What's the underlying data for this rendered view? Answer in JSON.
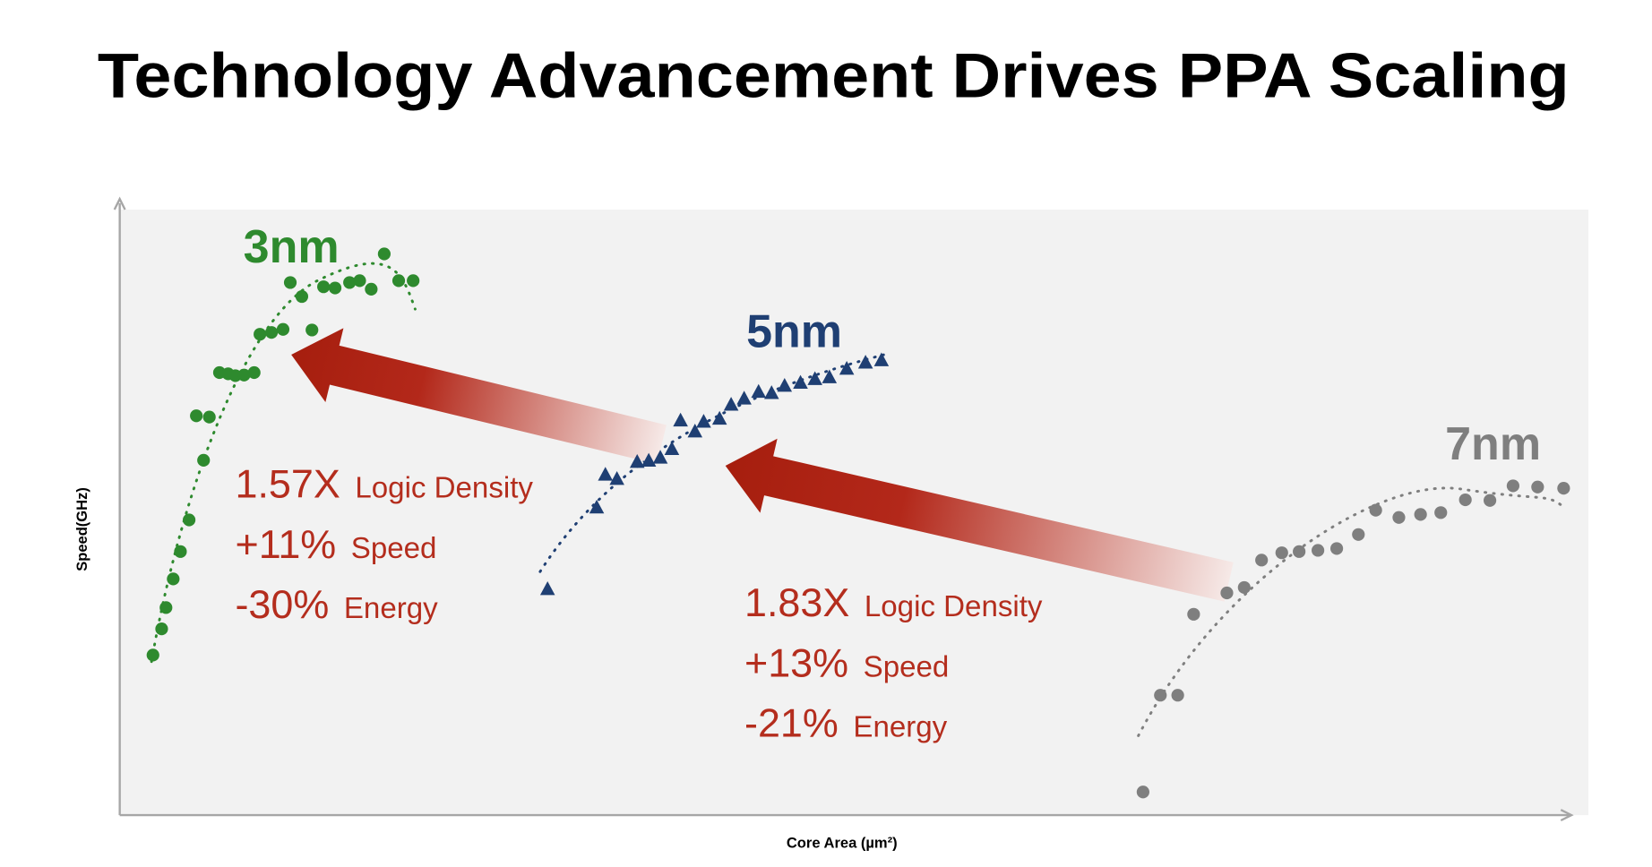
{
  "chart_data": {
    "type": "scatter",
    "title": "Technology Advancement Drives PPA Scaling",
    "x_label": "Core Area (µm²)",
    "y_label": "Speed(GHz)",
    "xlim": [
      0,
      100
    ],
    "ylim": [
      0,
      100
    ],
    "series": [
      {
        "name": "3nm",
        "color": "#2e8a2e",
        "x": [
          2.3,
          2.9,
          3.2,
          3.7,
          4.2,
          4.8,
          5.8,
          6.2,
          5.3,
          6.9,
          7.5,
          8.0,
          8.6,
          9.3,
          9.7,
          10.5,
          11.3,
          13.3,
          11.8,
          12.6,
          14.1,
          14.9,
          15.9,
          16.6,
          17.4,
          19.3,
          20.3,
          18.3
        ],
        "values": [
          26.3,
          30.6,
          34.1,
          38.8,
          43.3,
          48.5,
          58.3,
          65.4,
          65.6,
          72.7,
          72.5,
          72.2,
          72.3,
          72.7,
          79.0,
          79.3,
          79.8,
          79.7,
          87.5,
          85.2,
          86.8,
          86.6,
          87.5,
          87.8,
          86.4,
          87.8,
          87.8,
          92.2
        ]
      },
      {
        "name": "5nm",
        "color": "#1f3f73",
        "x": [
          29.6,
          33.0,
          33.6,
          34.4,
          35.8,
          36.6,
          37.4,
          38.2,
          38.8,
          39.8,
          40.4,
          41.5,
          42.3,
          43.2,
          44.2,
          45.1,
          46.0,
          47.1,
          48.1,
          49.1,
          50.3,
          51.6,
          52.7
        ],
        "values": [
          37.2,
          50.6,
          56.0,
          55.3,
          58.1,
          58.3,
          58.8,
          60.2,
          64.9,
          63.1,
          64.7,
          65.2,
          67.5,
          68.5,
          69.6,
          69.4,
          70.6,
          71.1,
          71.7,
          72.0,
          73.4,
          74.4,
          74.8
        ]
      },
      {
        "name": "7nm",
        "color": "#7f7f7f",
        "x": [
          70.8,
          72.0,
          73.2,
          74.3,
          76.6,
          77.8,
          79.0,
          80.4,
          81.6,
          82.9,
          84.2,
          85.7,
          86.9,
          88.5,
          90.0,
          91.4,
          93.1,
          94.8,
          96.4,
          98.1,
          99.9
        ],
        "values": [
          3.8,
          19.7,
          19.7,
          33.0,
          36.5,
          37.4,
          41.9,
          43.1,
          43.3,
          43.5,
          43.8,
          46.1,
          50.1,
          48.9,
          49.4,
          49.7,
          51.8,
          51.7,
          54.1,
          53.9,
          53.7
        ]
      }
    ],
    "annotations": [
      {
        "lines": [
          {
            "big": "1.57X",
            "small": "Logic Density"
          },
          {
            "big": "+11%",
            "small": "Speed"
          },
          {
            "big": "-30%",
            "small": "Energy"
          }
        ]
      },
      {
        "lines": [
          {
            "big": "1.83X",
            "small": "Logic Density"
          },
          {
            "big": "+13%",
            "small": "Speed"
          },
          {
            "big": "-21%",
            "small": "Energy"
          }
        ]
      }
    ]
  }
}
